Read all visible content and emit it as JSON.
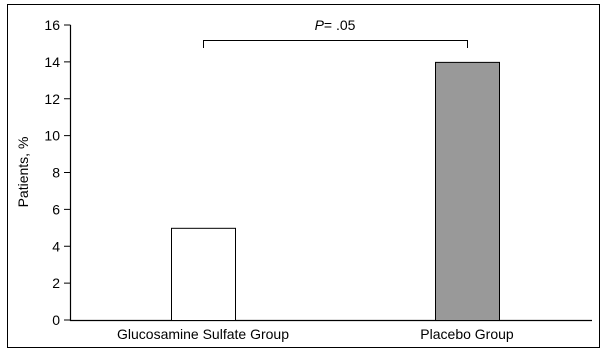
{
  "chart_data": {
    "type": "bar",
    "categories": [
      "Glucosamine Sulfate Group",
      "Placebo Group"
    ],
    "values": [
      5,
      14
    ],
    "bar_colors": [
      "#ffffff",
      "#999999"
    ],
    "ylabel": "Patients, %",
    "xlabel": "",
    "ylim": [
      0,
      16
    ],
    "yticks": [
      0,
      2,
      4,
      6,
      8,
      10,
      12,
      14,
      16
    ],
    "grid": false,
    "annotation": {
      "text_italic": "P",
      "text_rest": "= .05",
      "spans": [
        "Glucosamine Sulfate Group",
        "Placebo Group"
      ]
    }
  }
}
